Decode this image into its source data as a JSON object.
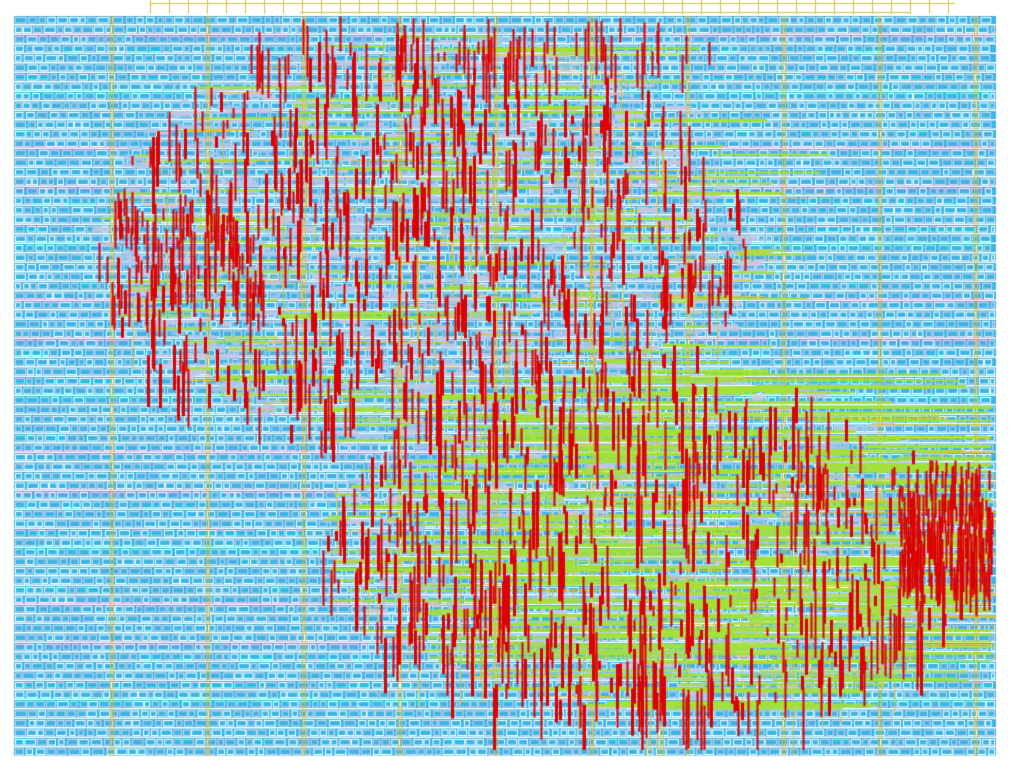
{
  "view": {
    "kind": "chip-layout-routing-view",
    "background": "#ffffff"
  },
  "layers": [
    {
      "name": "standard-cell-rows",
      "color": "#3bb4e8",
      "interactable": false
    },
    {
      "name": "cell-outlines",
      "color": "#d9d4e4",
      "interactable": false
    },
    {
      "name": "power-straps",
      "color": "#d9c23a",
      "interactable": false
    },
    {
      "name": "metal-horizontal-routing",
      "color": "#a2e03a",
      "interactable": false
    },
    {
      "name": "metal-vertical-routing",
      "color": "#dd0000",
      "interactable": false
    }
  ],
  "regions": {
    "congested-routing-top-left": {
      "label": "",
      "density": "medium"
    },
    "congested-routing-bottom-right": {
      "label": "",
      "density": "high"
    }
  }
}
